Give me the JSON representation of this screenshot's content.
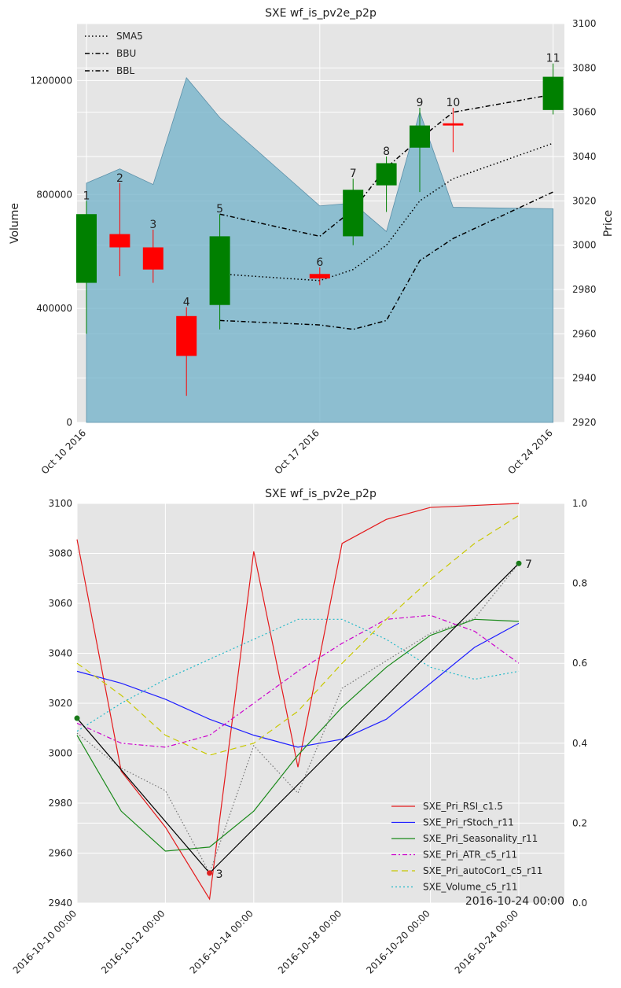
{
  "chart_data": [
    {
      "type": "candlestick",
      "title": "SXE wf_is_pv2e_p2p",
      "ylabel_left": "Volume",
      "ylabel_right": "Price",
      "left_ylim": [
        0,
        1400000
      ],
      "left_ticks": [
        "0",
        "400000",
        "800000",
        "1200000"
      ],
      "right_ylim": [
        2920,
        3100
      ],
      "right_ticks": [
        "2920",
        "2940",
        "2960",
        "2980",
        "3000",
        "3020",
        "3040",
        "3060",
        "3080",
        "3100"
      ],
      "x_ticks": [
        "Oct 10 2016",
        "Oct 17 2016",
        "Oct 24 2016"
      ],
      "legend": [
        "SMA5",
        "BBU",
        "BBL"
      ],
      "volume": [
        {
          "x": 0,
          "v": 840000
        },
        {
          "x": 1,
          "v": 890000
        },
        {
          "x": 2,
          "v": 835000
        },
        {
          "x": 3,
          "v": 1210000
        },
        {
          "x": 4,
          "v": 1070000
        },
        {
          "x": 7,
          "v": 760000
        },
        {
          "x": 8,
          "v": 770000
        },
        {
          "x": 9,
          "v": 670000
        },
        {
          "x": 10,
          "v": 1090000
        },
        {
          "x": 11,
          "v": 755000
        },
        {
          "x": 14,
          "v": 750000
        }
      ],
      "candles": [
        {
          "label": "1",
          "x": 0,
          "open": 2983,
          "high": 3020,
          "low": 2960,
          "close": 3014
        },
        {
          "label": "2",
          "x": 1,
          "open": 3005,
          "high": 3028,
          "low": 2986,
          "close": 2999
        },
        {
          "label": "3",
          "x": 2,
          "open": 2999,
          "high": 3007,
          "low": 2983,
          "close": 2989
        },
        {
          "label": "4",
          "x": 3,
          "open": 2968,
          "high": 2972,
          "low": 2932,
          "close": 2950
        },
        {
          "label": "5",
          "x": 4,
          "open": 2973,
          "high": 3014,
          "low": 2962,
          "close": 3004
        },
        {
          "label": "6",
          "x": 7,
          "open": 2987,
          "high": 2990,
          "low": 2982,
          "close": 2985
        },
        {
          "label": "7",
          "x": 8,
          "open": 3004,
          "high": 3030,
          "low": 3000,
          "close": 3025
        },
        {
          "label": "8",
          "x": 9,
          "open": 3027,
          "high": 3040,
          "low": 3015,
          "close": 3037
        },
        {
          "label": "9",
          "x": 10,
          "open": 3044,
          "high": 3062,
          "low": 3024,
          "close": 3054
        },
        {
          "label": "10",
          "x": 11,
          "open": 3055,
          "high": 3062,
          "low": 3042,
          "close": 3054
        },
        {
          "label": "11",
          "x": 14,
          "open": 3061,
          "high": 3082,
          "low": 3059,
          "close": 3076
        }
      ],
      "sma5": [
        {
          "x": 4,
          "y": 2987
        },
        {
          "x": 7,
          "y": 2984
        },
        {
          "x": 8,
          "y": 2989
        },
        {
          "x": 9,
          "y": 3000
        },
        {
          "x": 10,
          "y": 3020
        },
        {
          "x": 11,
          "y": 3030
        },
        {
          "x": 14,
          "y": 3046
        }
      ],
      "bbu": [
        {
          "x": 4,
          "y": 3014
        },
        {
          "x": 7,
          "y": 3004
        },
        {
          "x": 8,
          "y": 3016
        },
        {
          "x": 9,
          "y": 3035
        },
        {
          "x": 10,
          "y": 3048
        },
        {
          "x": 11,
          "y": 3060
        },
        {
          "x": 14,
          "y": 3068
        }
      ],
      "bbl": [
        {
          "x": 4,
          "y": 2966
        },
        {
          "x": 7,
          "y": 2964
        },
        {
          "x": 8,
          "y": 2962
        },
        {
          "x": 9,
          "y": 2966
        },
        {
          "x": 10,
          "y": 2993
        },
        {
          "x": 11,
          "y": 3003
        },
        {
          "x": 14,
          "y": 3024
        }
      ]
    },
    {
      "type": "line",
      "title": "SXE wf_is_pv2e_p2p",
      "left_ylim": [
        2940,
        3100
      ],
      "left_ticks": [
        "2940",
        "2960",
        "2980",
        "3000",
        "3020",
        "3040",
        "3060",
        "3080",
        "3100"
      ],
      "right_ylim": [
        0.0,
        1.0
      ],
      "right_ticks": [
        "0.0",
        "0.2",
        "0.4",
        "0.6",
        "0.8",
        "1.0"
      ],
      "x_ticks": [
        "2016-10-10 00:00",
        "2016-10-12 00:00",
        "2016-10-14 00:00",
        "2016-10-18 00:00",
        "2016-10-20 00:00",
        "2016-10-24 00:00"
      ],
      "corner_label": "2016-10-24 00:00",
      "price_series": [
        {
          "x": 0,
          "y": 3014,
          "color": "#000000"
        },
        {
          "x": 3,
          "y": 2952,
          "color": "#000000"
        },
        {
          "x": 10,
          "y": 3076,
          "color": "#000000"
        }
      ],
      "price_points": [
        {
          "x": 0,
          "y": 3014,
          "label": "",
          "color": "#1a7a1a"
        },
        {
          "x": 3,
          "y": 2952,
          "label": "3",
          "color": "#e02020"
        },
        {
          "x": 10,
          "y": 3076,
          "label": "7",
          "color": "#1a7a1a"
        }
      ],
      "grey_dotted": [
        {
          "x": 0,
          "y": 3008
        },
        {
          "x": 1,
          "y": 2994
        },
        {
          "x": 2,
          "y": 2985
        },
        {
          "x": 3,
          "y": 2952
        },
        {
          "x": 4,
          "y": 3003
        },
        {
          "x": 5,
          "y": 2984
        },
        {
          "x": 6,
          "y": 3026
        },
        {
          "x": 7,
          "y": 3037
        },
        {
          "x": 8,
          "y": 3048
        },
        {
          "x": 9,
          "y": 3054
        },
        {
          "x": 10,
          "y": 3076
        }
      ],
      "series": [
        {
          "name": "SXE_Pri_RSI_c1.5",
          "color": "#e41a1c",
          "dash": "",
          "values": [
            0.91,
            0.33,
            0.19,
            0.01,
            0.88,
            0.34,
            0.9,
            0.96,
            0.99,
            0.995,
            1.0
          ]
        },
        {
          "name": "SXE_Pri_rStoch_r11",
          "color": "#1f1fff",
          "dash": "",
          "values": [
            0.58,
            0.55,
            0.51,
            0.46,
            0.42,
            0.39,
            0.41,
            0.46,
            0.55,
            0.64,
            0.7
          ]
        },
        {
          "name": "SXE_Pri_Seasonality_r11",
          "color": "#1a8a1a",
          "dash": "",
          "values": [
            0.42,
            0.23,
            0.13,
            0.14,
            0.23,
            0.37,
            0.49,
            0.59,
            0.67,
            0.71,
            0.705
          ]
        },
        {
          "name": "SXE_Pri_ATR_c5_r11",
          "color": "#cc00cc",
          "dash": "6,3,2,3",
          "values": [
            0.45,
            0.4,
            0.39,
            0.42,
            0.5,
            0.58,
            0.65,
            0.71,
            0.72,
            0.68,
            0.6
          ]
        },
        {
          "name": "SXE_Pri_autoCor1_c5_r11",
          "color": "#c8c800",
          "dash": "8,5",
          "values": [
            0.6,
            0.52,
            0.42,
            0.37,
            0.4,
            0.48,
            0.6,
            0.71,
            0.81,
            0.9,
            0.97
          ]
        },
        {
          "name": "SXE_Volume_c5_r11",
          "color": "#20b8c8",
          "dash": "2,3",
          "values": [
            0.43,
            0.5,
            0.56,
            0.61,
            0.66,
            0.71,
            0.71,
            0.66,
            0.59,
            0.56,
            0.58
          ]
        }
      ]
    }
  ]
}
